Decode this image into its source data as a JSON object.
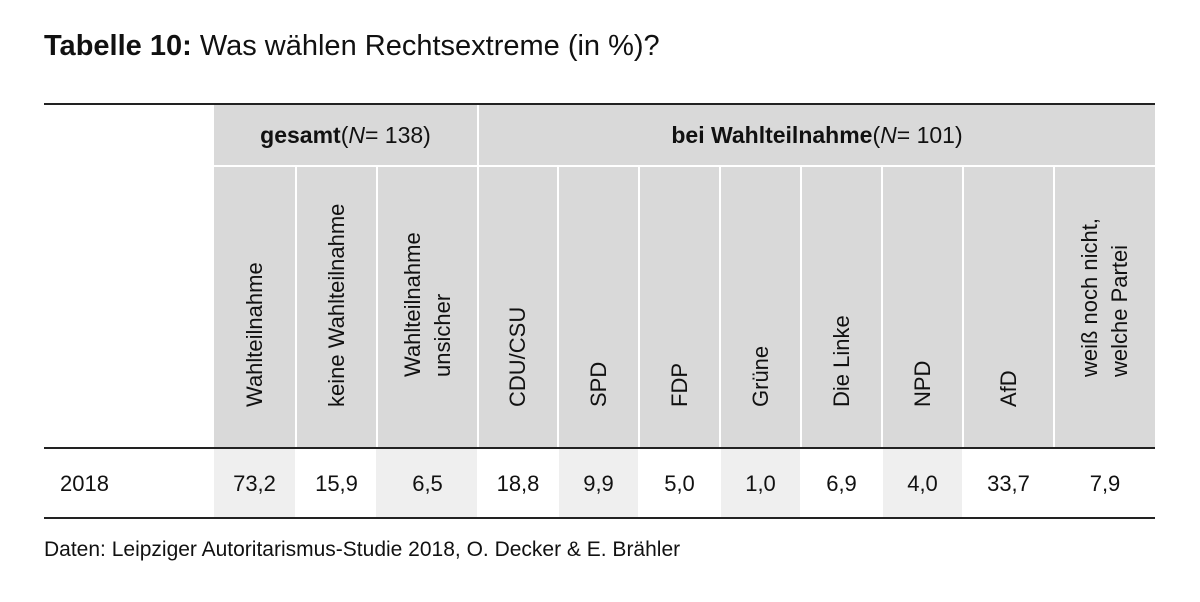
{
  "title": {
    "lead": "Tabelle 10:",
    "text": "Was wählen Rechtsextreme (in %)?"
  },
  "groups": [
    {
      "label": "gesamt",
      "n_prefix": " (",
      "n_italic": "N",
      "n_suffix": " = 138)"
    },
    {
      "label": "bei Wahlteilnahme",
      "n_prefix": " (",
      "n_italic": "N",
      "n_suffix": " = 101)"
    }
  ],
  "columns": [
    "Wahlteilnahme",
    "keine Wahlteilnahme",
    "Wahlteilnahme\nunsicher",
    "CDU/CSU",
    "SPD",
    "FDP",
    "Grüne",
    "Die Linke",
    "NPD",
    "AfD",
    "weiß noch nicht,\nwelche Partei"
  ],
  "rows": [
    {
      "label": "2018",
      "values": [
        "73,2",
        "15,9",
        "6,5",
        "18,8",
        "9,9",
        "5,0",
        "1,0",
        "6,9",
        "4,0",
        "33,7",
        "7,9"
      ]
    }
  ],
  "source": "Daten: Leipziger Autoritarismus-Studie 2018, O. Decker & E. Brähler"
}
